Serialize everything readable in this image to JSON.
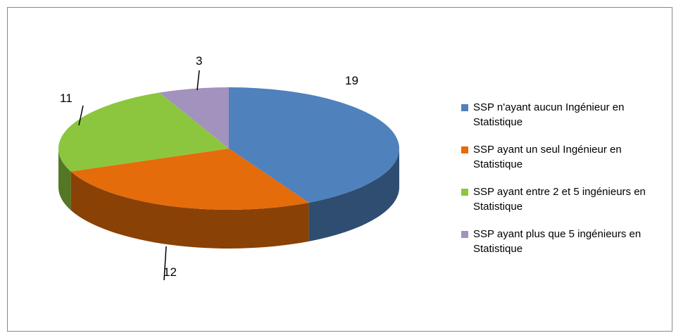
{
  "chart_data": {
    "type": "pie3d",
    "categories": [
      "SSP n'ayant aucun Ingénieur en Statistique",
      "SSP ayant un seul Ingénieur en Statistique",
      "SSP ayant entre 2 et 5 ingénieurs en Statistique",
      "SSP ayant plus que 5 ingénieurs en Statistique"
    ],
    "values": [
      19,
      12,
      11,
      3
    ],
    "colors": [
      "#4f81bd",
      "#e46c0a",
      "#8cc63f",
      "#a292be"
    ],
    "legend": "right"
  }
}
